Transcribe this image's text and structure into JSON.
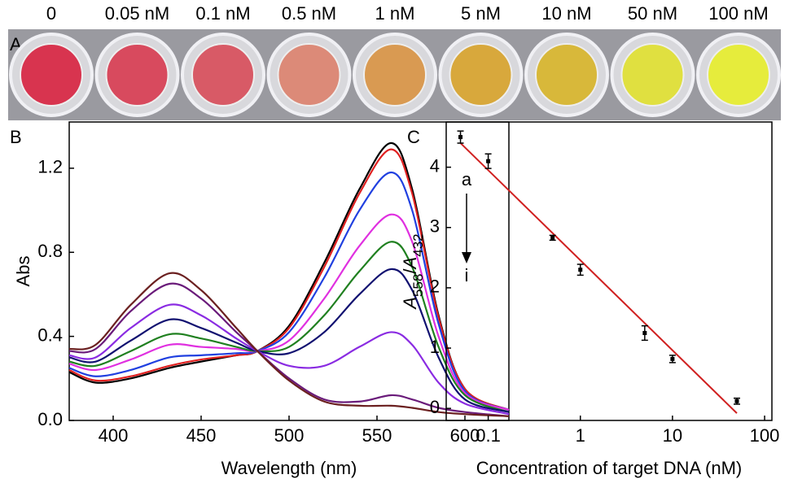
{
  "panel_a": {
    "label": "A",
    "wells": [
      "0",
      "0.05 nM",
      "0.1 nM",
      "0.5 nM",
      "1 nM",
      "5 nM",
      "10 nM",
      "50 nM",
      "100 nM"
    ],
    "well_colors": [
      "#d8344f",
      "#d84a5e",
      "#d85a66",
      "#dc8a78",
      "#d99a52",
      "#d8a83c",
      "#d8b83a",
      "#e0e040",
      "#e6ec3c"
    ]
  },
  "chart_data": [
    {
      "type": "line",
      "panel": "B",
      "xlabel": "Wavelength (nm)",
      "ylabel": "Abs",
      "x": [
        375,
        390,
        410,
        432,
        450,
        470,
        482,
        500,
        520,
        540,
        558,
        570,
        585,
        600,
        625
      ],
      "xlim": [
        375,
        625
      ],
      "xticks": [
        400,
        450,
        500,
        550,
        600
      ],
      "ylim": [
        0,
        1.42
      ],
      "yticks": [
        {
          "value": 0,
          "label": "0.0"
        },
        0.4,
        0.8,
        1.2
      ],
      "annotations": [
        "a",
        "i"
      ],
      "series": [
        {
          "color": "#000000",
          "values": [
            0.23,
            0.18,
            0.2,
            0.25,
            0.28,
            0.31,
            0.33,
            0.45,
            0.75,
            1.1,
            1.32,
            1.1,
            0.5,
            0.15,
            0.05
          ]
        },
        {
          "color": "#e02020",
          "values": [
            0.24,
            0.19,
            0.21,
            0.26,
            0.29,
            0.31,
            0.33,
            0.44,
            0.73,
            1.08,
            1.29,
            1.08,
            0.49,
            0.15,
            0.05
          ]
        },
        {
          "color": "#2040e0",
          "values": [
            0.25,
            0.21,
            0.24,
            0.3,
            0.31,
            0.32,
            0.33,
            0.42,
            0.68,
            1.0,
            1.18,
            1.0,
            0.46,
            0.14,
            0.05
          ]
        },
        {
          "color": "#e030e0",
          "values": [
            0.27,
            0.24,
            0.29,
            0.36,
            0.35,
            0.34,
            0.33,
            0.38,
            0.58,
            0.83,
            0.98,
            0.85,
            0.4,
            0.13,
            0.05
          ]
        },
        {
          "color": "#208020",
          "values": [
            0.28,
            0.26,
            0.33,
            0.41,
            0.39,
            0.35,
            0.33,
            0.35,
            0.5,
            0.71,
            0.85,
            0.73,
            0.35,
            0.12,
            0.04
          ]
        },
        {
          "color": "#101070",
          "values": [
            0.3,
            0.28,
            0.38,
            0.48,
            0.44,
            0.37,
            0.33,
            0.32,
            0.42,
            0.6,
            0.72,
            0.62,
            0.3,
            0.1,
            0.04
          ]
        },
        {
          "color": "#8a2be2",
          "values": [
            0.31,
            0.3,
            0.44,
            0.55,
            0.5,
            0.39,
            0.33,
            0.26,
            0.26,
            0.35,
            0.42,
            0.36,
            0.18,
            0.08,
            0.03
          ]
        },
        {
          "color": "#6a1b7a",
          "values": [
            0.33,
            0.34,
            0.52,
            0.65,
            0.58,
            0.42,
            0.33,
            0.2,
            0.1,
            0.09,
            0.12,
            0.1,
            0.06,
            0.04,
            0.02
          ]
        },
        {
          "color": "#6b2020",
          "values": [
            0.34,
            0.36,
            0.55,
            0.7,
            0.62,
            0.44,
            0.33,
            0.19,
            0.09,
            0.07,
            0.07,
            0.06,
            0.04,
            0.03,
            0.02
          ]
        }
      ]
    },
    {
      "type": "scatter",
      "panel": "C",
      "xlabel": "Concentration of target DNA (nM)",
      "ylabel": [
        "A",
        "558",
        "/",
        "A",
        "432"
      ],
      "log_x": true,
      "x": [
        0.05,
        0.1,
        0.5,
        1,
        5,
        10,
        50
      ],
      "values": [
        4.5,
        4.1,
        2.83,
        2.3,
        1.25,
        0.82,
        0.12
      ],
      "errors": [
        0.1,
        0.12,
        0.04,
        0.09,
        0.12,
        0.06,
        0.05
      ],
      "color": "#000000",
      "fit": {
        "x": [
          0.05,
          50
        ],
        "y": [
          4.4,
          -0.08
        ],
        "color": "#d02020"
      },
      "xlim": [
        0.035,
        120
      ],
      "xticks": [
        0.1,
        1,
        10,
        100
      ],
      "ylim": [
        -0.2,
        4.75
      ],
      "yticks": [
        0,
        1,
        2,
        3,
        4
      ]
    }
  ]
}
